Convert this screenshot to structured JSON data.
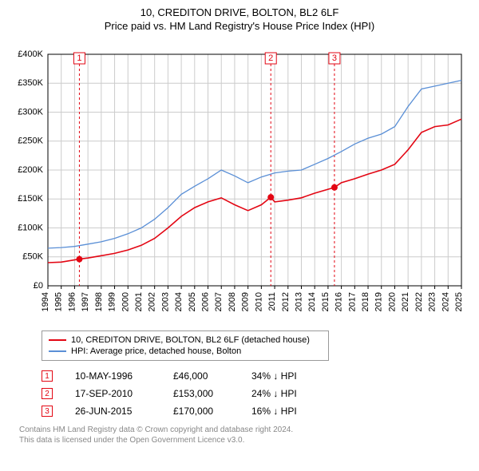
{
  "title": "10, CREDITON DRIVE, BOLTON, BL2 6LF",
  "subtitle": "Price paid vs. HM Land Registry's House Price Index (HPI)",
  "chart": {
    "type": "line",
    "background_color": "#ffffff",
    "grid_color": "#cccccc",
    "xlim": [
      1994,
      2025
    ],
    "ylim": [
      0,
      400000
    ],
    "ytick_step": 50000,
    "yticks": [
      "£0",
      "£50K",
      "£100K",
      "£150K",
      "£200K",
      "£250K",
      "£300K",
      "£350K",
      "£400K"
    ],
    "xticks": [
      1994,
      1995,
      1996,
      1997,
      1998,
      1999,
      2000,
      2001,
      2002,
      2003,
      2004,
      2005,
      2006,
      2007,
      2008,
      2009,
      2010,
      2011,
      2012,
      2013,
      2014,
      2015,
      2016,
      2017,
      2018,
      2019,
      2020,
      2021,
      2022,
      2023,
      2024,
      2025
    ],
    "marker_line_color": "#e30613",
    "marker_line_dash": "3,3",
    "markers": [
      {
        "n": 1,
        "x": 1996.36,
        "price": 46000
      },
      {
        "n": 2,
        "x": 2010.71,
        "price": 153000
      },
      {
        "n": 3,
        "x": 2015.48,
        "price": 170000
      }
    ],
    "series": [
      {
        "name": "price_paid",
        "label": "10, CREDITON DRIVE, BOLTON, BL2 6LF (detached house)",
        "color": "#e30613",
        "line_width": 1.6,
        "data": [
          [
            1994,
            40000
          ],
          [
            1995,
            41000
          ],
          [
            1996.36,
            46000
          ],
          [
            1997,
            48000
          ],
          [
            1998,
            52000
          ],
          [
            1999,
            56000
          ],
          [
            2000,
            62000
          ],
          [
            2001,
            70000
          ],
          [
            2002,
            82000
          ],
          [
            2003,
            100000
          ],
          [
            2004,
            120000
          ],
          [
            2005,
            135000
          ],
          [
            2006,
            145000
          ],
          [
            2007,
            152000
          ],
          [
            2008,
            140000
          ],
          [
            2009,
            130000
          ],
          [
            2010,
            140000
          ],
          [
            2010.71,
            153000
          ],
          [
            2011,
            145000
          ],
          [
            2012,
            148000
          ],
          [
            2013,
            152000
          ],
          [
            2014,
            160000
          ],
          [
            2015.48,
            170000
          ],
          [
            2016,
            178000
          ],
          [
            2017,
            185000
          ],
          [
            2018,
            193000
          ],
          [
            2019,
            200000
          ],
          [
            2020,
            210000
          ],
          [
            2021,
            235000
          ],
          [
            2022,
            265000
          ],
          [
            2023,
            275000
          ],
          [
            2024,
            278000
          ],
          [
            2025,
            288000
          ]
        ]
      },
      {
        "name": "hpi",
        "label": "HPI: Average price, detached house, Bolton",
        "color": "#5a8fd6",
        "line_width": 1.3,
        "data": [
          [
            1994,
            65000
          ],
          [
            1995,
            66000
          ],
          [
            1996,
            68000
          ],
          [
            1997,
            72000
          ],
          [
            1998,
            76000
          ],
          [
            1999,
            82000
          ],
          [
            2000,
            90000
          ],
          [
            2001,
            100000
          ],
          [
            2002,
            115000
          ],
          [
            2003,
            135000
          ],
          [
            2004,
            158000
          ],
          [
            2005,
            172000
          ],
          [
            2006,
            185000
          ],
          [
            2007,
            200000
          ],
          [
            2008,
            190000
          ],
          [
            2009,
            178000
          ],
          [
            2010,
            188000
          ],
          [
            2011,
            195000
          ],
          [
            2012,
            198000
          ],
          [
            2013,
            200000
          ],
          [
            2014,
            210000
          ],
          [
            2015,
            220000
          ],
          [
            2016,
            232000
          ],
          [
            2017,
            245000
          ],
          [
            2018,
            255000
          ],
          [
            2019,
            262000
          ],
          [
            2020,
            275000
          ],
          [
            2021,
            310000
          ],
          [
            2022,
            340000
          ],
          [
            2023,
            345000
          ],
          [
            2024,
            350000
          ],
          [
            2025,
            355000
          ]
        ]
      }
    ]
  },
  "sales": [
    {
      "n": "1",
      "date": "10-MAY-1996",
      "price": "£46,000",
      "diff": "34% ↓ HPI"
    },
    {
      "n": "2",
      "date": "17-SEP-2010",
      "price": "£153,000",
      "diff": "24% ↓ HPI"
    },
    {
      "n": "3",
      "date": "26-JUN-2015",
      "price": "£170,000",
      "diff": "16% ↓ HPI"
    }
  ],
  "attribution": {
    "line1": "Contains HM Land Registry data © Crown copyright and database right 2024.",
    "line2": "This data is licensed under the Open Government Licence v3.0."
  }
}
